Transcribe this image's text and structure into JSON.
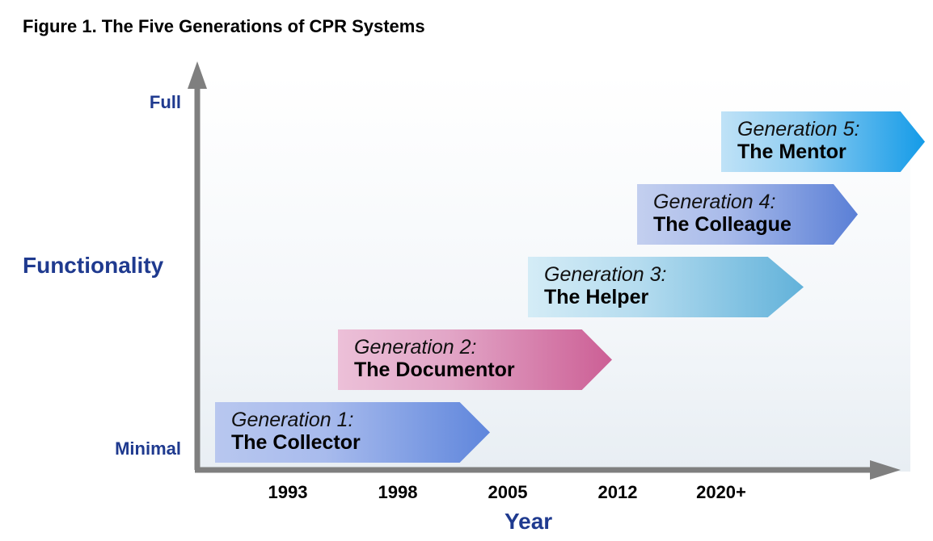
{
  "title": "Figure 1. The Five Generations of CPR Systems",
  "y_axis": {
    "label": "Functionality",
    "top_label": "Full",
    "bottom_label": "Minimal"
  },
  "x_axis": {
    "label": "Year",
    "ticks": [
      "1993",
      "1998",
      "2005",
      "2012",
      "2020+"
    ]
  },
  "generations": [
    {
      "line1": "Generation 1:",
      "line2": "The Collector"
    },
    {
      "line1": "Generation 2:",
      "line2": "The Documentor"
    },
    {
      "line1": "Generation 3:",
      "line2": "The Helper"
    },
    {
      "line1": "Generation 4:",
      "line2": "The Colleague"
    },
    {
      "line1": "Generation 5:",
      "line2": "The Mentor"
    }
  ],
  "colors": {
    "axis": "#7f7f7f",
    "axis_labels": "#1f3a8f",
    "generation_1": "#5f86dc",
    "generation_2": "#cc5f95",
    "generation_3": "#62b2da",
    "generation_4": "#5a7fd6",
    "generation_5": "#149be8"
  }
}
